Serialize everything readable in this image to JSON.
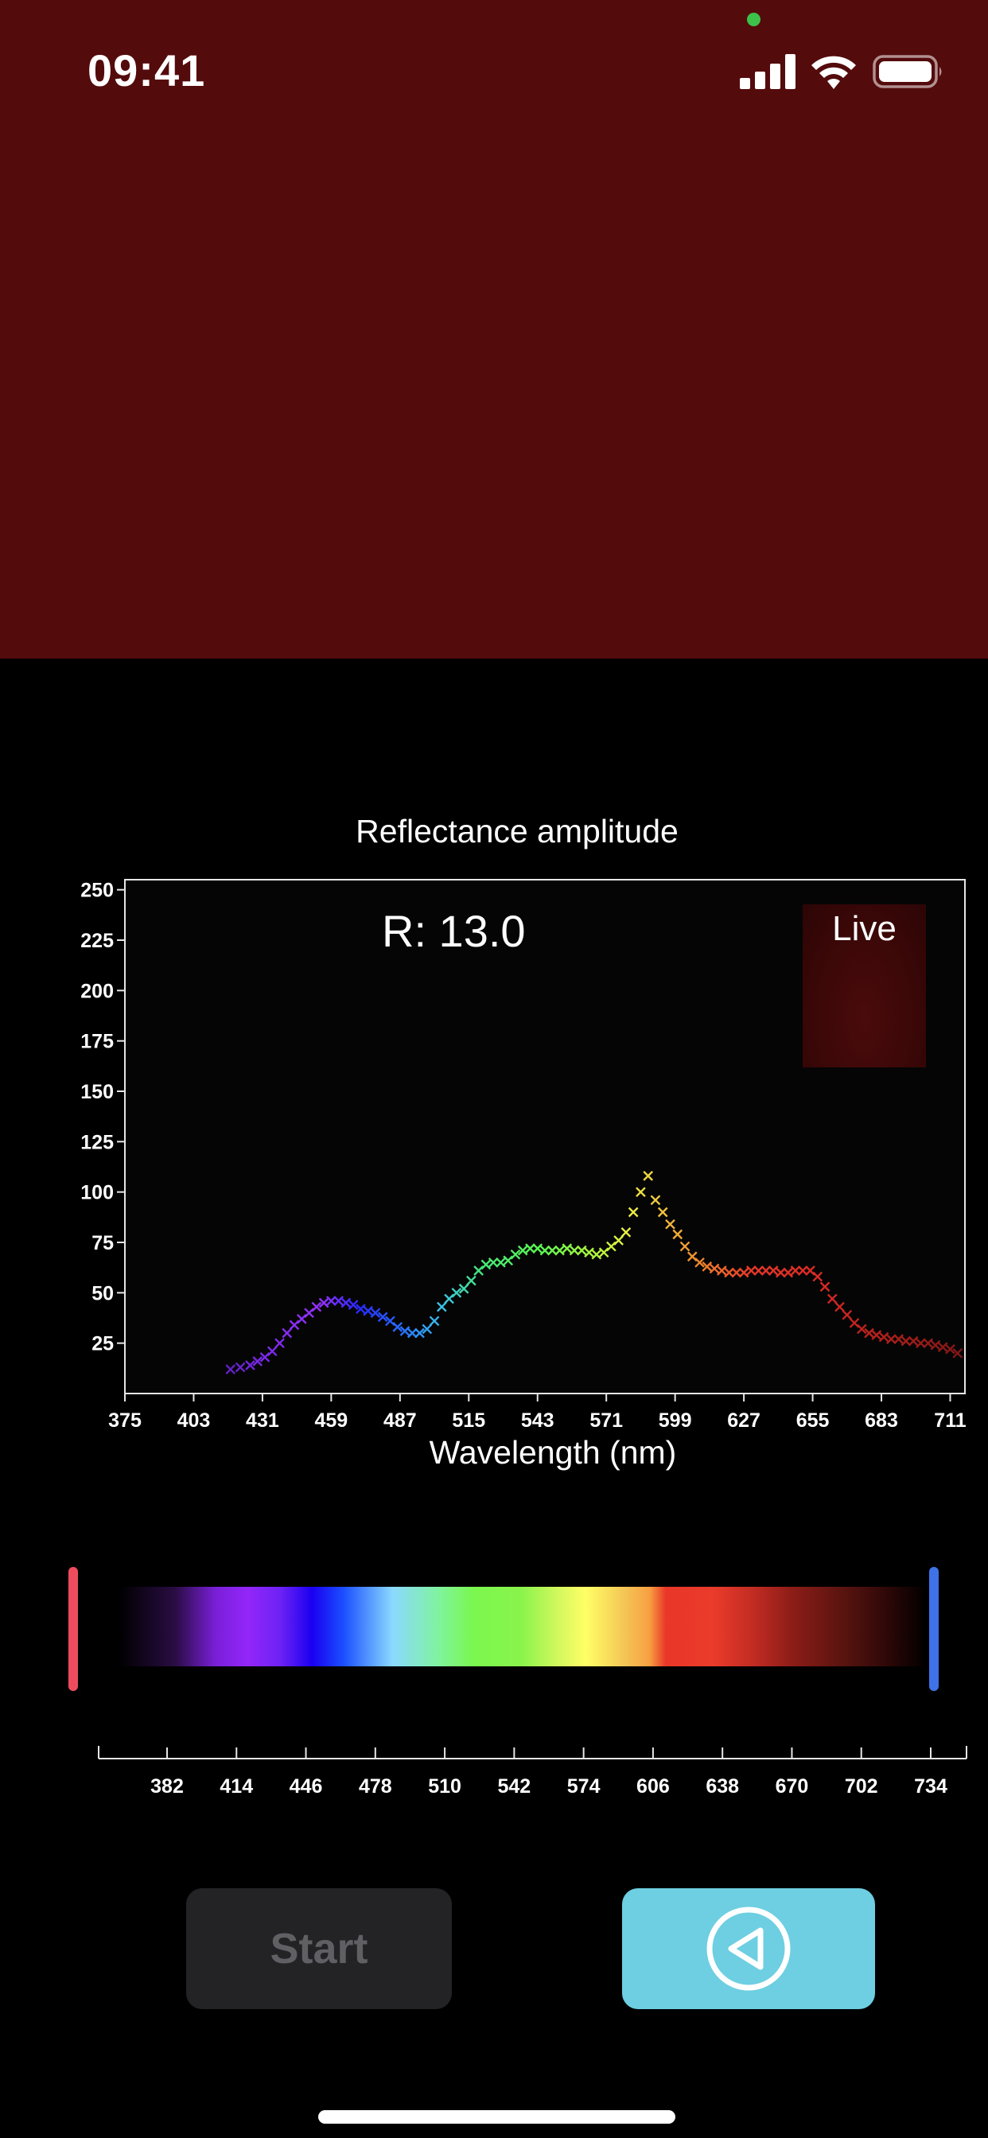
{
  "status_bar": {
    "time": "09:41",
    "icons": [
      "camera-indicator-dot",
      "signal-icon",
      "wifi-icon",
      "battery-icon"
    ],
    "indicator_color": "#3cc24a"
  },
  "preview": {
    "color": "#540b0c"
  },
  "chart": {
    "title": "Reflectance amplitude",
    "readout": "R: 13.0",
    "live_label": "Live",
    "xlabel": "Wavelength (nm)"
  },
  "chart_data": {
    "type": "scatter",
    "title": "Reflectance amplitude",
    "xlabel": "Wavelength (nm)",
    "ylabel": "",
    "xlim": [
      375,
      717
    ],
    "ylim": [
      0,
      255
    ],
    "x_ticks": [
      375,
      403,
      431,
      459,
      487,
      515,
      543,
      571,
      599,
      627,
      655,
      683,
      711
    ],
    "y_ticks": [
      25,
      50,
      75,
      100,
      125,
      150,
      175,
      200,
      225,
      250
    ],
    "marker": "x",
    "colored_by_wavelength": true,
    "series": [
      {
        "x": [
          418,
          422,
          426,
          429,
          432,
          435,
          438,
          441,
          444,
          447,
          450,
          453,
          456,
          459,
          462,
          465,
          468,
          471,
          474,
          477,
          480,
          483,
          486,
          489,
          492,
          495,
          498,
          501,
          504,
          507,
          510,
          513,
          516,
          519,
          522,
          525,
          528,
          531,
          534,
          537,
          540,
          543,
          546,
          549,
          552,
          555,
          558,
          561,
          564,
          567,
          570,
          573,
          576,
          579,
          582,
          585,
          588,
          591,
          594,
          597,
          600,
          603,
          606,
          609,
          612,
          615,
          618,
          621,
          624,
          627,
          630,
          633,
          636,
          639,
          642,
          645,
          648,
          651,
          654,
          657,
          660,
          663,
          666,
          669,
          672,
          675,
          678,
          681,
          684,
          687,
          690,
          693,
          696,
          699,
          702,
          705,
          708,
          711,
          714
        ],
        "y": [
          12,
          13,
          14,
          16,
          18,
          21,
          25,
          30,
          34,
          37,
          40,
          43,
          45,
          46,
          46,
          45,
          44,
          42,
          41,
          40,
          38,
          36,
          33,
          31,
          30,
          30,
          32,
          36,
          43,
          47,
          50,
          52,
          56,
          61,
          64,
          65,
          65,
          66,
          69,
          71,
          72,
          72,
          71,
          71,
          71,
          72,
          71,
          71,
          70,
          69,
          70,
          73,
          76,
          80,
          90,
          100,
          108,
          96,
          90,
          84,
          79,
          73,
          68,
          65,
          63,
          62,
          61,
          60,
          60,
          60,
          61,
          61,
          61,
          61,
          60,
          60,
          61,
          61,
          61,
          58,
          53,
          47,
          43,
          39,
          35,
          32,
          30,
          29,
          28,
          27,
          27,
          26,
          26,
          25,
          25,
          24,
          23,
          22,
          20
        ]
      }
    ]
  },
  "range_selector": {
    "ticks": [
      "382",
      "414",
      "446",
      "478",
      "510",
      "542",
      "574",
      "606",
      "638",
      "670",
      "702",
      "734"
    ],
    "left_handle_color": "#ee4c5e",
    "right_handle_color": "#3e72e6"
  },
  "controls": {
    "start_label": "Start",
    "back_icon": "play-back-icon",
    "back_color": "#6dcfe1"
  }
}
